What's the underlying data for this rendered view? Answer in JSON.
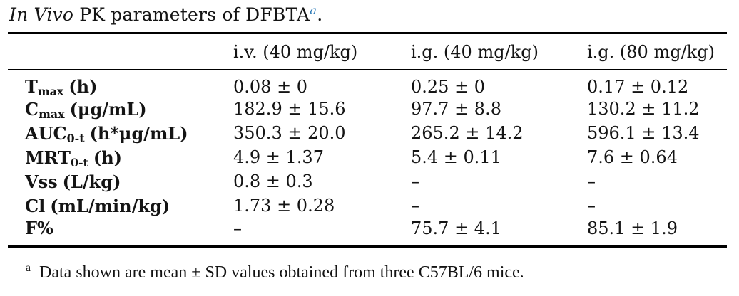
{
  "page": {
    "background": "#ffffff",
    "text_color": "#141414",
    "footnote_link_color": "#2b7ab8"
  },
  "title": {
    "italic": "In Vivo",
    "rest": " PK parameters of DFBTA",
    "footnote_marker": "a",
    "period": "."
  },
  "table": {
    "columns": [
      "i.v. (40 mg/kg)",
      "i.g. (40 mg/kg)",
      "i.g. (80 mg/kg)"
    ],
    "rows": [
      {
        "param_base": "T",
        "param_sub": "max",
        "param_unit": "(h)",
        "values": [
          "0.08 ± 0",
          "0.25 ± 0",
          "0.17 ± 0.12"
        ]
      },
      {
        "param_base": "C",
        "param_sub": "max",
        "param_unit": "(μg/mL)",
        "values": [
          "182.9 ± 15.6",
          "97.7 ± 8.8",
          "130.2 ± 11.2"
        ]
      },
      {
        "param_base": "AUC",
        "param_sub": "0-t",
        "param_unit": "(h*μg/mL)",
        "values": [
          "350.3 ± 20.0",
          "265.2 ± 14.2",
          "596.1 ± 13.4"
        ]
      },
      {
        "param_base": "MRT",
        "param_sub": "0-t",
        "param_unit": "(h)",
        "values": [
          "4.9 ± 1.37",
          "5.4 ± 0.11",
          "7.6 ± 0.64"
        ]
      },
      {
        "param_base": "Vss",
        "param_sub": "",
        "param_unit": "(L/kg)",
        "values": [
          "0.8 ± 0.3",
          "–",
          "–"
        ]
      },
      {
        "param_base": "Cl",
        "param_sub": "",
        "param_unit": "(mL/min/kg)",
        "values": [
          "1.73 ± 0.28",
          "–",
          "–"
        ]
      },
      {
        "param_base": "F%",
        "param_sub": "",
        "param_unit": "",
        "values": [
          "–",
          "75.7 ± 4.1",
          "85.1 ± 1.9"
        ]
      }
    ]
  },
  "footnote": {
    "marker": "a",
    "text": "Data shown are mean ± SD values obtained from three C57BL/6 mice."
  }
}
